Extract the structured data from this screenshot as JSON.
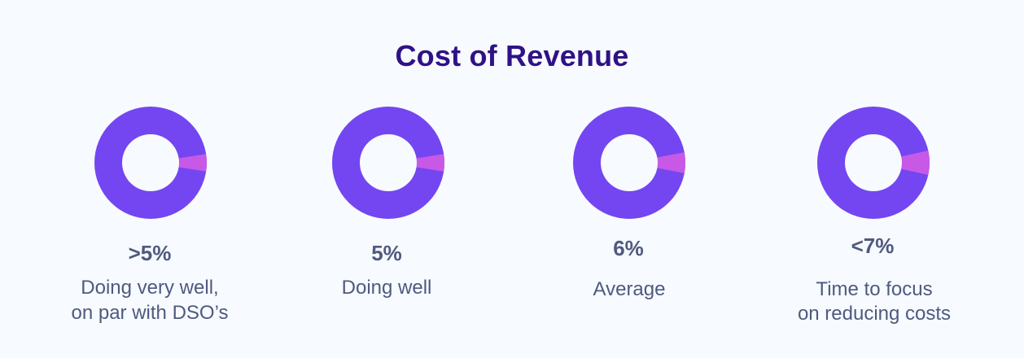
{
  "title": "Cost of Revenue",
  "colors": {
    "main": "#7346f1",
    "accent": "#c759e6",
    "hole": "#f7fafe",
    "title": "#2f1286",
    "text": "#4f5a7f"
  },
  "chart_data": {
    "type": "pie",
    "title": "Cost of Revenue",
    "items": [
      {
        "value_label": ">5%",
        "description": [
          "Doing very well,",
          "on par with DSO’s"
        ],
        "highlight_percent": 5
      },
      {
        "value_label": "5%",
        "description": [
          "Doing well"
        ],
        "highlight_percent": 5
      },
      {
        "value_label": "6%",
        "description": [
          "Average"
        ],
        "highlight_percent": 6
      },
      {
        "value_label": "<7%",
        "description": [
          "Time to focus",
          "on reducing costs"
        ],
        "highlight_percent": 7
      }
    ]
  }
}
